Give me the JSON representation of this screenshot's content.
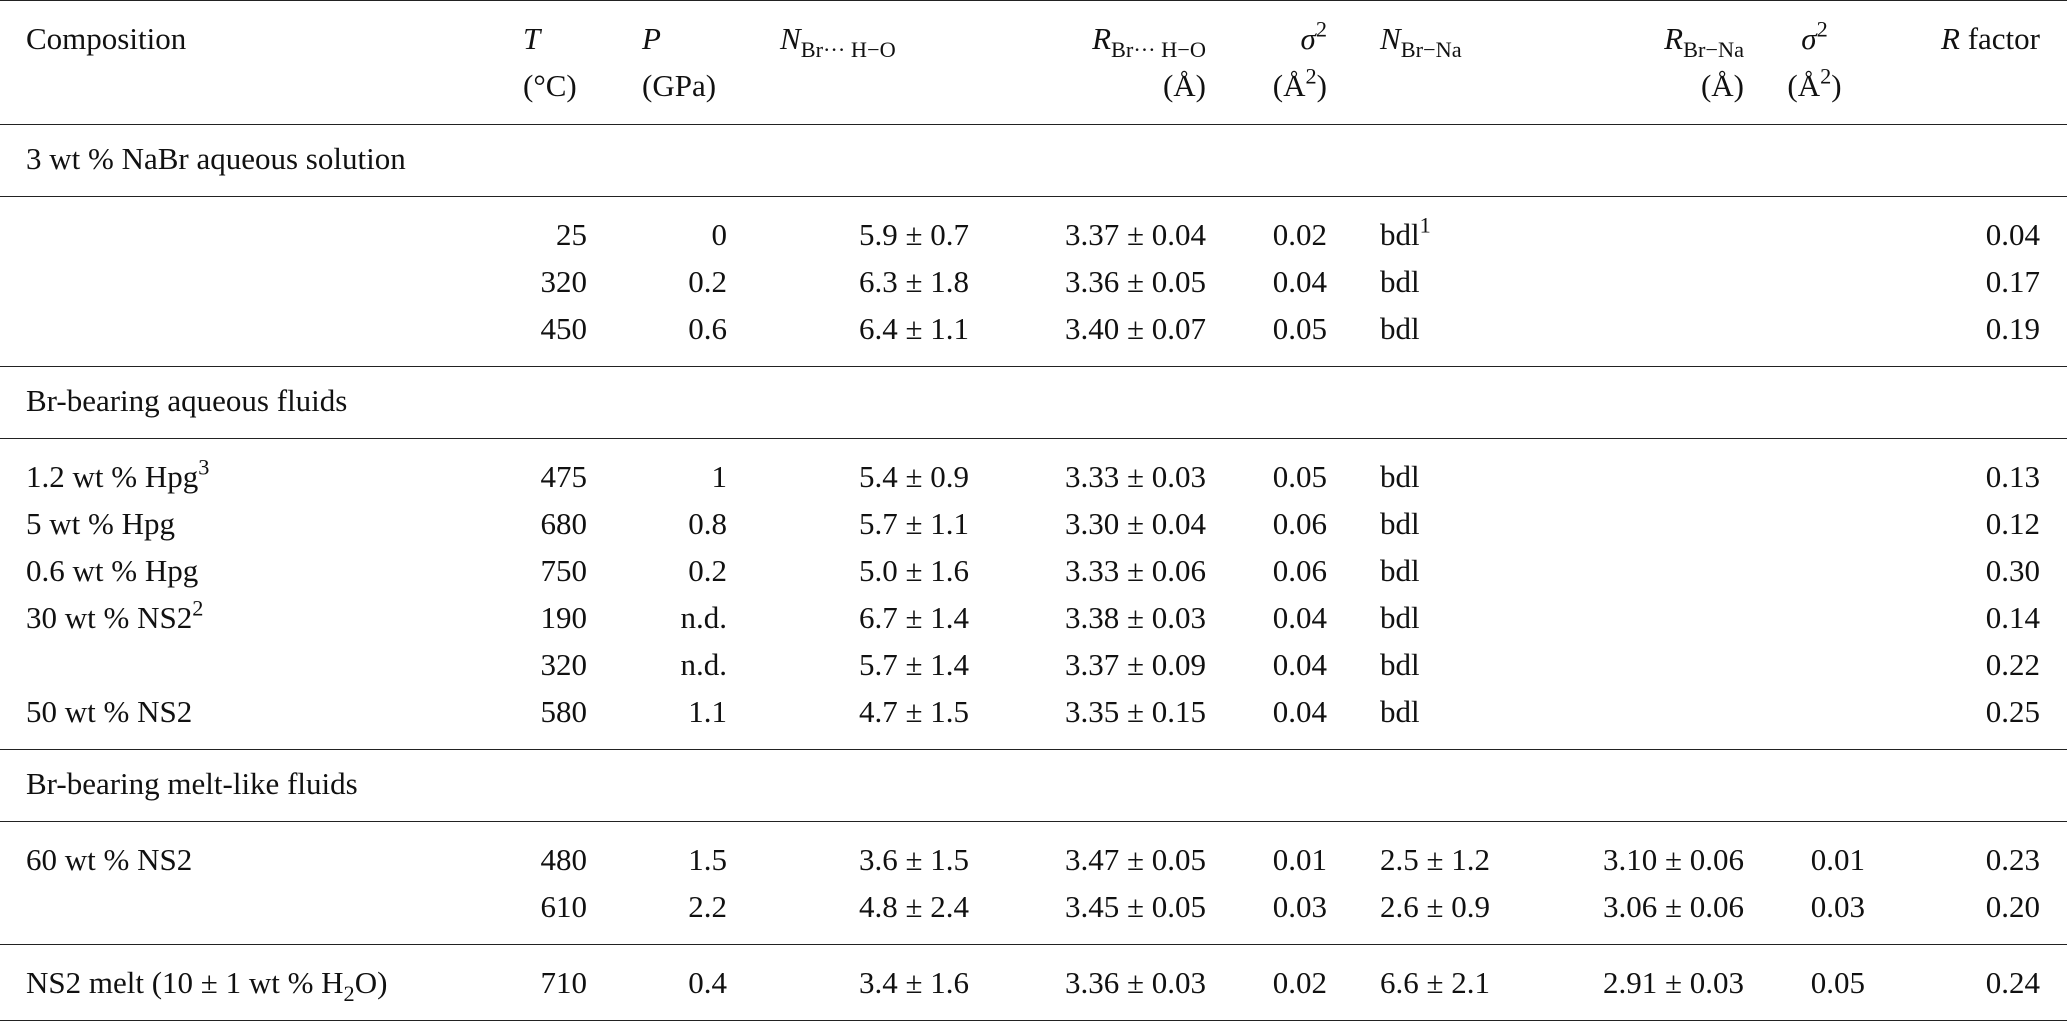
{
  "table": {
    "headers": [
      [
        [
          {
            "text": "Composition"
          }
        ]
      ],
      [
        [
          {
            "sym": "T"
          }
        ],
        [
          {
            "text": "(°C)"
          }
        ]
      ],
      [
        [
          {
            "sym": "P"
          }
        ],
        [
          {
            "text": "(GPa)"
          }
        ]
      ],
      [
        [
          {
            "sym": "N"
          },
          {
            "sub": "Br··· H−O"
          }
        ]
      ],
      [
        [
          {
            "sym": "R"
          },
          {
            "sub": "Br··· H−O"
          }
        ],
        [
          {
            "text": "(Å)"
          }
        ]
      ],
      [
        [
          {
            "sym": "σ"
          },
          {
            "sup": "2"
          }
        ],
        [
          {
            "text": "(Å"
          },
          {
            "sup": "2"
          },
          {
            "text": ")"
          }
        ]
      ],
      [
        [
          {
            "sym": "N"
          },
          {
            "sub": "Br−Na"
          }
        ]
      ],
      [
        [
          {
            "sym": "R"
          },
          {
            "sub": "Br−Na"
          }
        ],
        [
          {
            "text": "(Å)"
          }
        ]
      ],
      [
        [
          {
            "sym": "σ"
          },
          {
            "sup": "2"
          }
        ],
        [
          {
            "text": "(Å"
          },
          {
            "sup": "2"
          },
          {
            "text": ")"
          }
        ]
      ],
      [
        [
          {
            "sym": "R"
          },
          {
            "text": " factor"
          }
        ]
      ]
    ],
    "groups": [
      {
        "title": "3 wt % NaBr aqueous solution",
        "rows": [
          [
            null,
            "25",
            "0",
            "5.9 ± 0.7",
            "3.37 ± 0.04",
            "0.02",
            [
              {
                "text": "bdl"
              },
              {
                "sup": "1"
              }
            ],
            null,
            null,
            "0.04"
          ],
          [
            null,
            "320",
            "0.2",
            "6.3 ± 1.8",
            "3.36 ± 0.05",
            "0.04",
            "bdl",
            null,
            null,
            "0.17"
          ],
          [
            null,
            "450",
            "0.6",
            "6.4 ± 1.1",
            "3.40 ± 0.07",
            "0.05",
            "bdl",
            null,
            null,
            "0.19"
          ]
        ]
      },
      {
        "title": "Br-bearing aqueous fluids",
        "rows": [
          [
            [
              {
                "text": "1.2 wt % Hpg"
              },
              {
                "sup": "3"
              }
            ],
            "475",
            "1",
            "5.4 ± 0.9",
            "3.33 ± 0.03",
            "0.05",
            "bdl",
            null,
            null,
            "0.13"
          ],
          [
            "5 wt % Hpg",
            "680",
            "0.8",
            "5.7 ± 1.1",
            "3.30 ± 0.04",
            "0.06",
            "bdl",
            null,
            null,
            "0.12"
          ],
          [
            "0.6 wt % Hpg",
            "750",
            "0.2",
            "5.0 ± 1.6",
            "3.33 ± 0.06",
            "0.06",
            "bdl",
            null,
            null,
            "0.30"
          ],
          [
            [
              {
                "text": "30 wt % NS2"
              },
              {
                "sup": "2"
              }
            ],
            "190",
            "n.d.",
            "6.7 ± 1.4",
            "3.38 ± 0.03",
            "0.04",
            "bdl",
            null,
            null,
            "0.14"
          ],
          [
            null,
            "320",
            "n.d.",
            "5.7 ± 1.4",
            "3.37 ± 0.09",
            "0.04",
            "bdl",
            null,
            null,
            "0.22"
          ],
          [
            "50 wt % NS2",
            "580",
            "1.1",
            "4.7 ± 1.5",
            "3.35 ± 0.15",
            "0.04",
            "bdl",
            null,
            null,
            "0.25"
          ]
        ]
      },
      {
        "title": "Br-bearing melt-like fluids",
        "rows": [
          [
            "60 wt % NS2",
            "480",
            "1.5",
            "3.6 ± 1.5",
            "3.47 ± 0.05",
            "0.01",
            "2.5 ± 1.2",
            "3.10 ± 0.06",
            "0.01",
            "0.23"
          ],
          [
            null,
            "610",
            "2.2",
            "4.8 ± 2.4",
            "3.45 ± 0.05",
            "0.03",
            "2.6 ± 0.9",
            "3.06 ± 0.06",
            "0.03",
            "0.20"
          ]
        ]
      },
      {
        "rows": [
          [
            [
              {
                "text": "NS2 melt (10 ± 1 wt % H"
              },
              {
                "sub": "2"
              },
              {
                "text": "O)"
              }
            ],
            "710",
            "0.4",
            "3.4 ± 1.6",
            "3.36 ± 0.03",
            "0.02",
            "6.6 ± 2.1",
            "2.91 ± 0.03",
            "0.05",
            "0.24"
          ]
        ]
      }
    ]
  }
}
